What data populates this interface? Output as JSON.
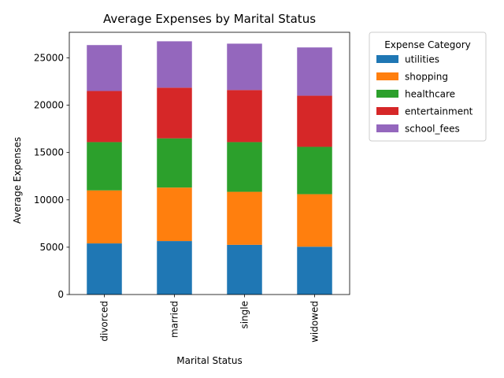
{
  "chart_data": {
    "type": "bar",
    "stacked": true,
    "title": "Average Expenses by Marital Status",
    "xlabel": "Marital Status",
    "ylabel": "Average Expenses",
    "categories": [
      "divorced",
      "married",
      "single",
      "widowed"
    ],
    "ylim": [
      0,
      27700
    ],
    "yticks": [
      0,
      5000,
      10000,
      15000,
      20000,
      25000
    ],
    "grid": false,
    "legend": {
      "title": "Expense Category",
      "placement": "outside-top-right"
    },
    "series": [
      {
        "name": "utilities",
        "color": "#1f77b4",
        "values": [
          5400,
          5650,
          5250,
          5050
        ]
      },
      {
        "name": "shopping",
        "color": "#ff7f0e",
        "values": [
          5600,
          5650,
          5600,
          5550
        ]
      },
      {
        "name": "healthcare",
        "color": "#2ca02c",
        "values": [
          5100,
          5200,
          5250,
          5000
        ]
      },
      {
        "name": "entertainment",
        "color": "#d62728",
        "values": [
          5400,
          5350,
          5500,
          5400
        ]
      },
      {
        "name": "school_fees",
        "color": "#9467bd",
        "values": [
          4850,
          4900,
          4900,
          5100
        ]
      }
    ]
  }
}
